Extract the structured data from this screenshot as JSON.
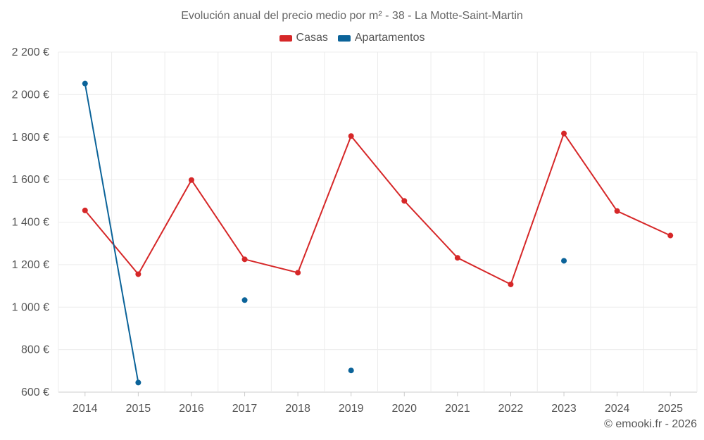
{
  "chart_data": {
    "type": "line",
    "title": "Evolución anual del precio medio por m² - 38 - La Motte-Saint-Martin",
    "xlabel": "",
    "ylabel": "",
    "categories": [
      "2014",
      "2015",
      "2016",
      "2017",
      "2018",
      "2019",
      "2020",
      "2021",
      "2022",
      "2023",
      "2024",
      "2025"
    ],
    "ylim": [
      600,
      2200
    ],
    "yticks": [
      600,
      800,
      1000,
      1200,
      1400,
      1600,
      1800,
      2000,
      2200
    ],
    "ytick_labels": [
      "600 €",
      "800 €",
      "1 000 €",
      "1 200 €",
      "1 400 €",
      "1 600 €",
      "1 800 €",
      "2 000 €",
      "2 200 €"
    ],
    "grid": true,
    "legend_position": "top-center",
    "series": [
      {
        "name": "Casas",
        "color": "#d62728",
        "values": [
          1455,
          1155,
          1598,
          1225,
          1162,
          1805,
          1500,
          1232,
          1107,
          1817,
          1452,
          1337
        ]
      },
      {
        "name": "Apartamentos",
        "color": "#0b6399",
        "values": [
          2052,
          645,
          null,
          1033,
          null,
          702,
          null,
          null,
          null,
          1218,
          null,
          null
        ]
      }
    ]
  },
  "footer": {
    "copyright": "© emooki.fr - 2026"
  }
}
